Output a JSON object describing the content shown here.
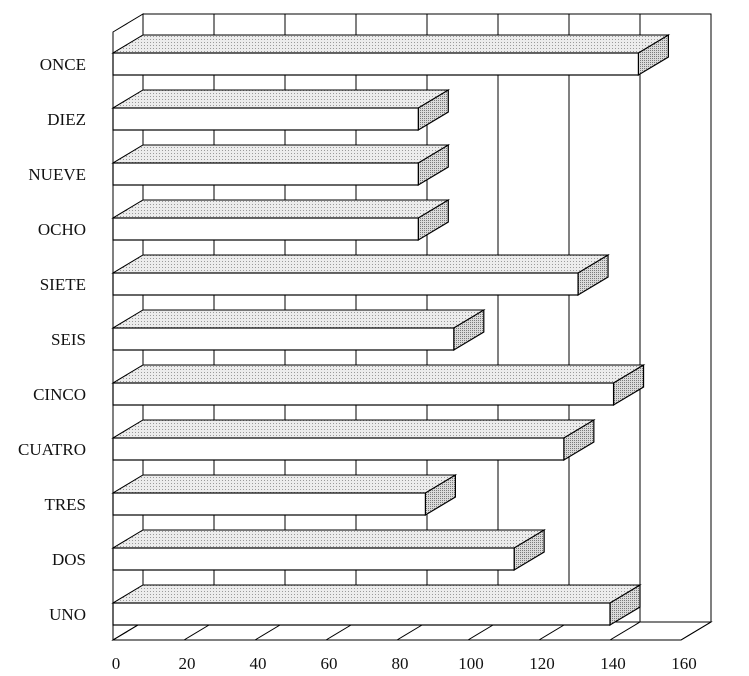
{
  "chart_data": {
    "type": "bar",
    "orientation": "horizontal",
    "style": "3d",
    "categories": [
      "UNO",
      "DOS",
      "TRES",
      "CUATRO",
      "CINCO",
      "SEIS",
      "SIETE",
      "OCHO",
      "NUEVE",
      "DIEZ",
      "ONCE"
    ],
    "values": [
      140,
      113,
      88,
      127,
      141,
      96,
      131,
      86,
      86,
      86,
      148
    ],
    "xlim": [
      0,
      160
    ],
    "xticks": [
      "0",
      "20",
      "40",
      "60",
      "80",
      "100",
      "120",
      "140",
      "160"
    ],
    "grid": true,
    "legend": "none",
    "title": "",
    "xlabel": "",
    "ylabel": "",
    "colors": {
      "bar_front": "#ffffff",
      "bar_top": "#e6e6e6",
      "bar_end": "#d2d2d2",
      "bar_base": "#3a3a3a",
      "line": "#000000"
    }
  }
}
